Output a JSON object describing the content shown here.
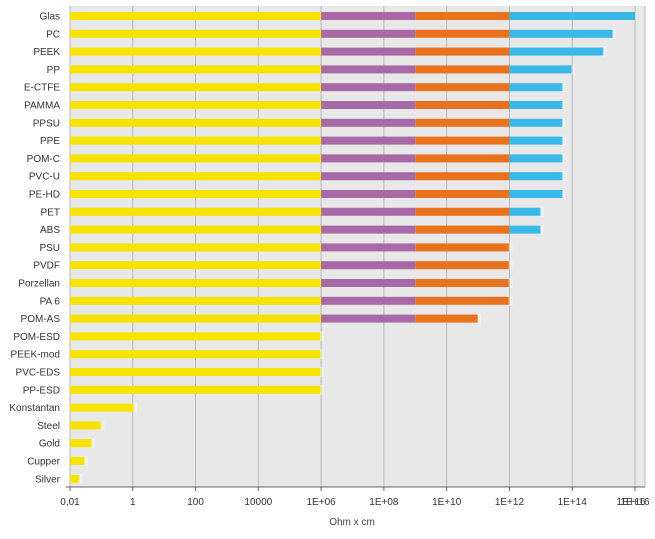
{
  "chart_data": {
    "type": "bar",
    "orientation": "horizontal",
    "xlabel": "Ohm x cm",
    "x_scale": "log10",
    "xlim": [
      0.01,
      1e+16
    ],
    "x_ticks": [
      "0,01",
      "1",
      "100",
      "10000",
      "1E+06",
      "1E+08",
      "1E+10",
      "1E+12",
      "1E+14",
      "1E+16",
      "1E+16"
    ],
    "grid": true,
    "segment_colors": [
      "#f6e400",
      "#a86aa6",
      "#e8721d",
      "#39b9e8"
    ],
    "background": "#e8e8e8",
    "categories": [
      "Glas",
      "PC",
      "PEEK",
      "PP",
      "E-CTFE",
      "PAMMA",
      "PPSU",
      "PPE",
      "POM-C",
      "PVC-U",
      "PE-HD",
      "PET",
      "ABS",
      "PSU",
      "PVDF",
      "Porzellan",
      "PA 6",
      "POM-AS",
      "POM-ESD",
      "PEEK-mod",
      "PVC-EDS",
      "PP-ESD",
      "Konstantan",
      "Steel",
      "Gold",
      "Cupper",
      "Silver"
    ],
    "values": [
      3e+16,
      2000000000000000.0,
      1000000000000000.0,
      100000000000000.0,
      50000000000000.0,
      50000000000000.0,
      50000000000000.0,
      50000000000000.0,
      50000000000000.0,
      50000000000000.0,
      50000000000000.0,
      10000000000000.0,
      10000000000000.0,
      1000000000000.0,
      1000000000000.0,
      1000000000000.0,
      1000000000000.0,
      100000000000.0,
      1000000.0,
      1000000.0,
      1000000.0,
      1000000.0,
      1.1,
      0.1,
      0.05,
      0.03,
      0.02
    ]
  }
}
